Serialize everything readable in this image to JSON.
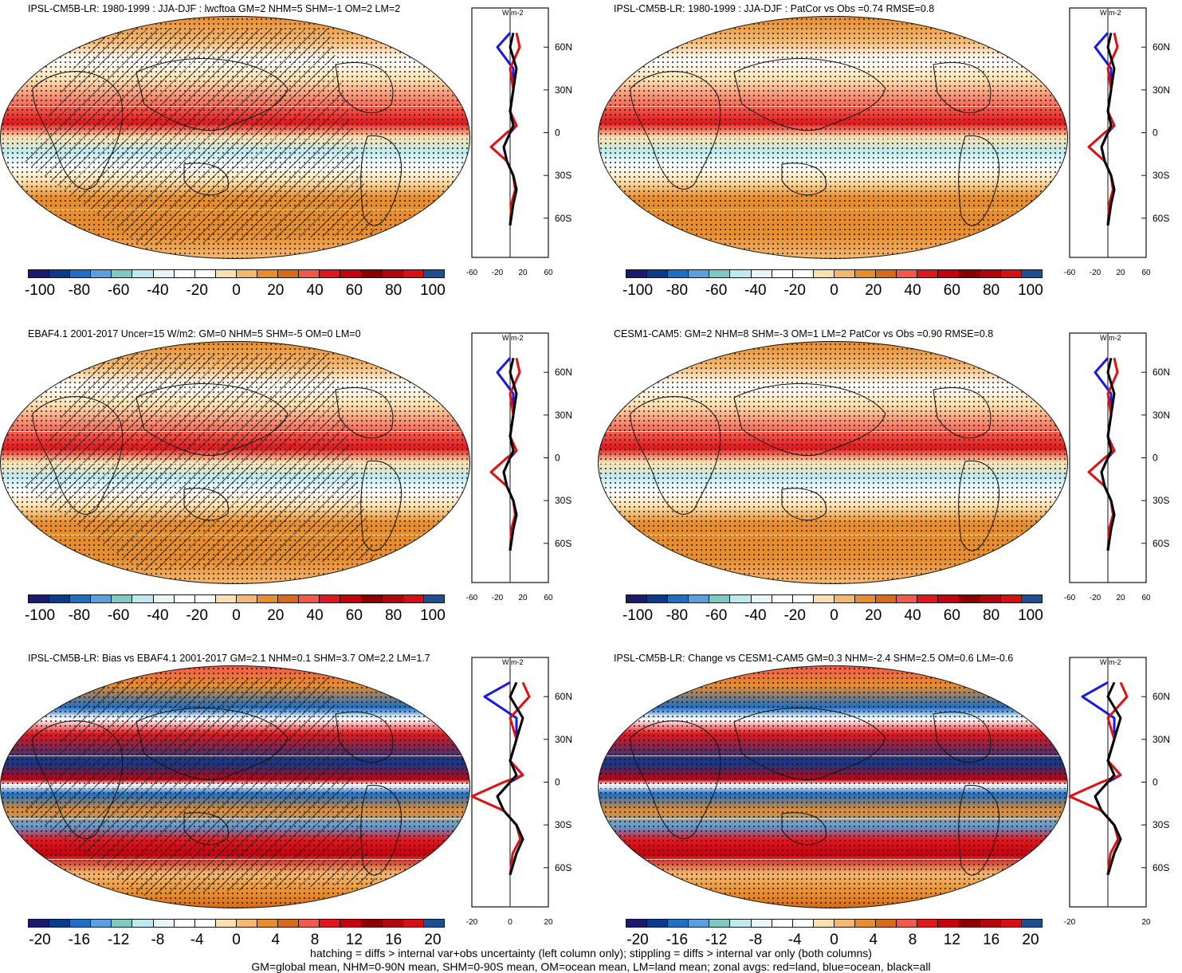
{
  "panels": [
    {
      "title": "IPSL-CM5B-LR: 1980-1999 : JJA-DJF : lwcftoa GM=2 NHM=5 SHM=-1 OM=2 LM=2",
      "colorbar_labels": [
        "-100",
        "-80",
        "-60",
        "-40",
        "-20",
        "0",
        "20",
        "40",
        "60",
        "80",
        "100"
      ],
      "zonal": {
        "units": "W m-2",
        "xticks": [
          "-60",
          "-20",
          "20",
          "60"
        ],
        "lat_labels": [
          "60N",
          "30N",
          "0",
          "30S",
          "60S"
        ]
      }
    },
    {
      "title": "IPSL-CM5B-LR: 1980-1999 : JJA-DJF : PatCor vs Obs =0.74 RMSE=0.8",
      "colorbar_labels": [
        "-100",
        "-80",
        "-60",
        "-40",
        "-20",
        "0",
        "20",
        "40",
        "60",
        "80",
        "100"
      ],
      "zonal": {
        "units": "W m-2",
        "xticks": [
          "-60",
          "-20",
          "20",
          "60"
        ],
        "lat_labels": [
          "60N",
          "30N",
          "0",
          "30S",
          "60S"
        ]
      }
    },
    {
      "title": "EBAF4.1 2001-2017 Uncer=15 W/m2: GM=0 NHM=5 SHM=-5 OM=0 LM=0",
      "colorbar_labels": [
        "-100",
        "-80",
        "-60",
        "-40",
        "-20",
        "0",
        "20",
        "40",
        "60",
        "80",
        "100"
      ],
      "zonal": {
        "units": "W m-2",
        "xticks": [
          "-60",
          "-20",
          "20",
          "60"
        ],
        "lat_labels": [
          "60N",
          "30N",
          "0",
          "30S",
          "60S"
        ]
      }
    },
    {
      "title": "CESM1-CAM5: GM=2 NHM=8 SHM=-3 OM=1 LM=2 PatCor vs Obs =0.90 RMSE=0.8",
      "colorbar_labels": [
        "-100",
        "-80",
        "-60",
        "-40",
        "-20",
        "0",
        "20",
        "40",
        "60",
        "80",
        "100"
      ],
      "zonal": {
        "units": "W m-2",
        "xticks": [
          "-60",
          "-20",
          "20",
          "60"
        ],
        "lat_labels": [
          "60N",
          "30N",
          "0",
          "30S",
          "60S"
        ]
      }
    },
    {
      "title": "IPSL-CM5B-LR: Bias vs EBAF4.1 2001-2017 GM=2.1 NHM=0.1 SHM=3.7 OM=2.2 LM=1.7",
      "colorbar_labels": [
        "-20",
        "-16",
        "-12",
        "-8",
        "-4",
        "0",
        "4",
        "8",
        "12",
        "16",
        "20"
      ],
      "zonal": {
        "units": "W m-2",
        "xticks": [
          "-20",
          "0",
          "20"
        ],
        "lat_labels": [
          "60N",
          "30N",
          "0",
          "30S",
          "60S"
        ]
      }
    },
    {
      "title": "IPSL-CM5B-LR: Change vs CESM1-CAM5 GM=0.3 NHM=-2.4 SHM=2.5 OM=0.6 LM=-0.6",
      "colorbar_labels": [
        "-20",
        "-16",
        "-12",
        "-8",
        "-4",
        "0",
        "4",
        "8",
        "12",
        "16",
        "20"
      ],
      "zonal": {
        "units": "W m-2",
        "xticks": [
          "-20",
          "20"
        ],
        "lat_labels": [
          "60N",
          "30N",
          "0",
          "30S",
          "60S"
        ]
      }
    }
  ],
  "colors": {
    "palette": [
      "#1a1a6e",
      "#0d3b8c",
      "#1f6fc4",
      "#5aa0de",
      "#7fc9c2",
      "#bfe9ee",
      "#e8f6f7",
      "#ffffff",
      "#ffffff",
      "#fbe1b0",
      "#f4b870",
      "#e88d2b",
      "#d86a18",
      "#f2594b",
      "#e3161b",
      "#c6000d",
      "#8b0000",
      "#b3060c",
      "#d41015",
      "#1d4f91"
    ],
    "land_line": "#e01010",
    "ocean_line": "#1818e8",
    "all_line": "#000000"
  },
  "chart_data": [
    {
      "type": "heatmap",
      "title": "IPSL-CM5B-LR: 1980-1999 : JJA-DJF : lwcftoa",
      "colorbar_range": [
        -100,
        100
      ],
      "zonal_mean_lines": {
        "lat": [
          70,
          60,
          45,
          30,
          15,
          5,
          0,
          -10,
          -20,
          -30,
          -40,
          -50,
          -65
        ],
        "all": [
          5,
          0,
          10,
          5,
          0,
          5,
          0,
          -10,
          -5,
          5,
          10,
          5,
          0
        ],
        "land": [
          10,
          15,
          0,
          5,
          0,
          10,
          -5,
          -30,
          -5,
          5,
          8,
          2,
          0
        ],
        "ocean": [
          0,
          -20,
          5,
          5,
          0,
          10,
          0,
          -10,
          -5,
          5,
          10,
          5,
          0
        ]
      }
    },
    {
      "type": "heatmap",
      "title": "IPSL-CM5B-LR: 1980-1999 : JJA-DJF : PatCor vs Obs =0.74 RMSE=0.8",
      "colorbar_range": [
        -100,
        100
      ]
    },
    {
      "type": "heatmap",
      "title": "EBAF4.1 2001-2017",
      "colorbar_range": [
        -100,
        100
      ]
    },
    {
      "type": "heatmap",
      "title": "CESM1-CAM5",
      "colorbar_range": [
        -100,
        100
      ]
    },
    {
      "type": "heatmap",
      "title": "IPSL-CM5B-LR: Bias vs EBAF4.1 2001-2017",
      "colorbar_range": [
        -20,
        20
      ]
    },
    {
      "type": "heatmap",
      "title": "IPSL-CM5B-LR: Change vs CESM1-CAM5",
      "colorbar_range": [
        -20,
        20
      ]
    }
  ],
  "footer": {
    "line1": "hatching = diffs > internal var+obs uncertainty (left column only); stippling = diffs > internal var only (both columns)",
    "line2": "GM=global mean, NHM=0-90N mean, SHM=0-90S mean, OM=ocean mean, LM=land mean; zonal avgs: red=land, blue=ocean, black=all"
  }
}
